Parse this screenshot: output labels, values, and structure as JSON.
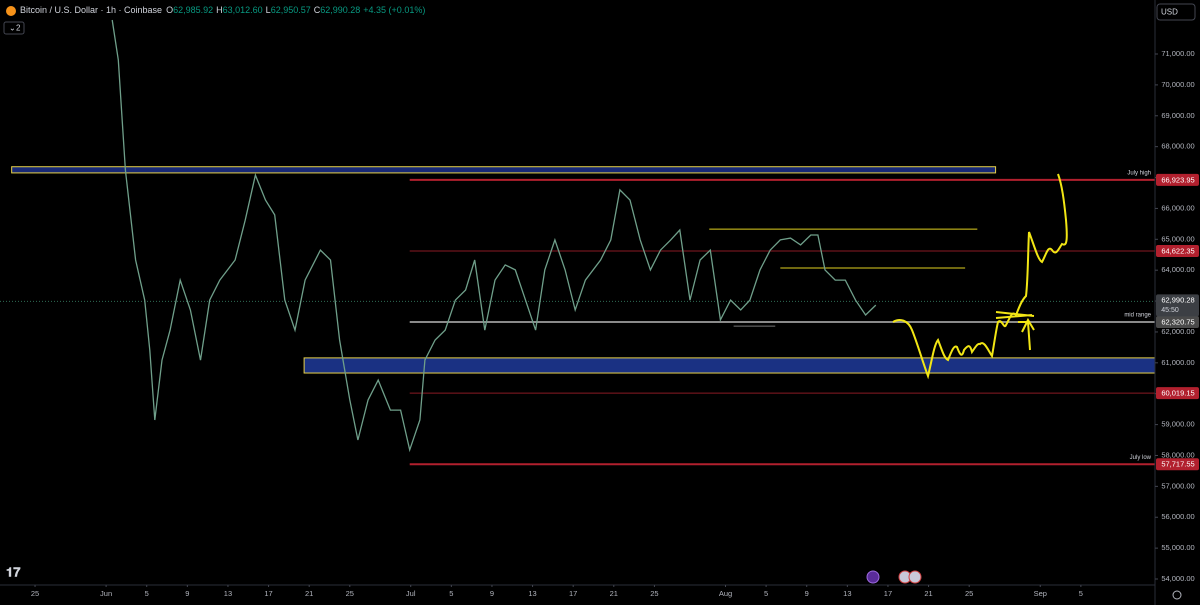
{
  "header": {
    "symbol": "Bitcoin / U.S. Dollar · 1h · Coinbase",
    "ohlc": [
      {
        "label": "O",
        "value": "62,985.92"
      },
      {
        "label": "H",
        "value": "63,012.60"
      },
      {
        "label": "L",
        "value": "62,950.57"
      },
      {
        "label": "C",
        "value": "62,990.28"
      }
    ],
    "change": "+4.35 (+0.01%)",
    "indicators": "2",
    "currency": "USD"
  },
  "chart_data": {
    "type": "line",
    "xlim": [
      -3.45,
      110.3
    ],
    "ylim": [
      53806,
      72749
    ],
    "xticks": [
      {
        "value": 0,
        "label": "25"
      },
      {
        "value": 7,
        "label": "Jun"
      },
      {
        "value": 11,
        "label": "5"
      },
      {
        "value": 15,
        "label": "9"
      },
      {
        "value": 19,
        "label": "13"
      },
      {
        "value": 23,
        "label": "17"
      },
      {
        "value": 27,
        "label": "21"
      },
      {
        "value": 31,
        "label": "25"
      },
      {
        "value": 37,
        "label": "Jul"
      },
      {
        "value": 41,
        "label": "5"
      },
      {
        "value": 45,
        "label": "9"
      },
      {
        "value": 49,
        "label": "13"
      },
      {
        "value": 53,
        "label": "17"
      },
      {
        "value": 57,
        "label": "21"
      },
      {
        "value": 61,
        "label": "25"
      },
      {
        "value": 68,
        "label": "Aug"
      },
      {
        "value": 72,
        "label": "5"
      },
      {
        "value": 76,
        "label": "9"
      },
      {
        "value": 80,
        "label": "13"
      },
      {
        "value": 84,
        "label": "17"
      },
      {
        "value": 88,
        "label": "21"
      },
      {
        "value": 92,
        "label": "25"
      },
      {
        "value": 99,
        "label": "Sep"
      },
      {
        "value": 103,
        "label": "5"
      }
    ],
    "yticks": [
      {
        "value": 54000,
        "label": "54,000.00"
      },
      {
        "value": 55000,
        "label": "55,000.00"
      },
      {
        "value": 56000,
        "label": "56,000.00"
      },
      {
        "value": 57000,
        "label": "57,000.00"
      },
      {
        "value": 58000,
        "label": "58,000.00"
      },
      {
        "value": 59000,
        "label": "59,000.00"
      },
      {
        "value": 60000,
        "label": "60,000.00"
      },
      {
        "value": 61000,
        "label": "61,000.00"
      },
      {
        "value": 62000,
        "label": "62,000.00"
      },
      {
        "value": 63000,
        "label": "63,000.00"
      },
      {
        "value": 64000,
        "label": "64,000.00"
      },
      {
        "value": 65000,
        "label": "65,000.00"
      },
      {
        "value": 66000,
        "label": "66,000.00"
      },
      {
        "value": 67000,
        "label": "67,000.00"
      },
      {
        "value": 68000,
        "label": "68,000.00"
      },
      {
        "value": 69000,
        "label": "69,000.00"
      },
      {
        "value": 70000,
        "label": "70,000.00"
      },
      {
        "value": 71000,
        "label": "71,000.00"
      }
    ],
    "series": [
      {
        "color": "#6f9f8a",
        "x": [
          7.6,
          8.2,
          8.9,
          9.9,
          10.8,
          11.3,
          11.8,
          12.5,
          13.3,
          14.3,
          15.3,
          16.3,
          17.2,
          18.2,
          19.7,
          20.7,
          21.7,
          22.7,
          23.6,
          24.6,
          25.6,
          26.6,
          28.1,
          29.1,
          30.0,
          31.0,
          31.8,
          32.8,
          33.8,
          35.0,
          36.0,
          36.9,
          37.9,
          38.4,
          39.4,
          40.4,
          41.4,
          42.4,
          43.3,
          44.3,
          45.3,
          46.3,
          47.3,
          48.3,
          49.3,
          50.2,
          51.2,
          52.2,
          53.2,
          54.2,
          55.7,
          56.7,
          57.6,
          58.6,
          59.6,
          60.6,
          61.6,
          62.6,
          63.5,
          64.5,
          65.5,
          66.5,
          67.5,
          68.5,
          69.5,
          70.4,
          71.4,
          72.4,
          73.4,
          74.4,
          75.4,
          76.4,
          77.1,
          77.8,
          78.8,
          79.8,
          80.8,
          81.8,
          82.8
        ],
        "values": [
          72100,
          70810,
          67240,
          64330,
          63030,
          61410,
          59150,
          61090,
          62060,
          63680,
          62710,
          61090,
          63030,
          63680,
          64330,
          65620,
          67080,
          66270,
          65790,
          63030,
          62060,
          63680,
          64650,
          64330,
          61740,
          59800,
          58500,
          59800,
          60440,
          59470,
          59470,
          58180,
          59150,
          61090,
          61740,
          62060,
          63030,
          63360,
          64330,
          62060,
          63680,
          64170,
          64010,
          63030,
          62060,
          64010,
          64980,
          64010,
          62710,
          63680,
          64330,
          64980,
          66600,
          66270,
          64980,
          64010,
          64650,
          64980,
          65300,
          63030,
          64330,
          64650,
          62390,
          63030,
          62710,
          63030,
          64010,
          64650,
          64980,
          65040,
          64820,
          65140,
          65140,
          64010,
          63680,
          63680,
          63030,
          62550,
          62870
        ]
      }
    ],
    "levels": [
      {
        "value": 66923.95,
        "label": "66,923.95",
        "text": "July high",
        "color": "#b2202e",
        "start": 36.9
      },
      {
        "value": 64622.35,
        "label": "64,622.35",
        "color": "#8a1a24",
        "start": 36.9
      },
      {
        "value": 62320.75,
        "label": "62,320.75",
        "text": "mid range",
        "color": "#8a8a8a",
        "start": 36.9
      },
      {
        "value": 60019.15,
        "label": "60,019.15",
        "color": "#8a1a24",
        "start": 36.9
      },
      {
        "value": 57717.55,
        "label": "57,717.55",
        "text": "July low",
        "color": "#b2202e",
        "start": 36.9
      }
    ],
    "last_price": {
      "value": 62990.28,
      "label": "62,990.28",
      "countdown": "45:50"
    },
    "zones": [
      {
        "from": 67150,
        "to": 67350,
        "start": -2.3,
        "end": 94.6,
        "color": "#1b2f8a"
      },
      {
        "from": 60670,
        "to": 61160,
        "start": 26.5,
        "end": 110.3,
        "color": "#1f3a9a"
      }
    ],
    "segments": [
      {
        "value": 65330,
        "start": 66.4,
        "end": 92.8,
        "color": "#e0d020"
      },
      {
        "value": 64070,
        "start": 73.4,
        "end": 91.6,
        "color": "#e0d020"
      },
      {
        "value": 62190,
        "start": 68.8,
        "end": 72.9,
        "color": "#777777"
      }
    ]
  }
}
